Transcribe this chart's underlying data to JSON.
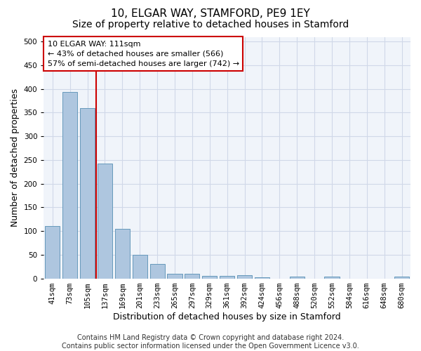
{
  "title_line1": "10, ELGAR WAY, STAMFORD, PE9 1EY",
  "title_line2": "Size of property relative to detached houses in Stamford",
  "xlabel": "Distribution of detached houses by size in Stamford",
  "ylabel": "Number of detached properties",
  "categories": [
    "41sqm",
    "73sqm",
    "105sqm",
    "137sqm",
    "169sqm",
    "201sqm",
    "233sqm",
    "265sqm",
    "297sqm",
    "329sqm",
    "361sqm",
    "392sqm",
    "424sqm",
    "456sqm",
    "488sqm",
    "520sqm",
    "552sqm",
    "584sqm",
    "616sqm",
    "648sqm",
    "680sqm"
  ],
  "values": [
    110,
    393,
    360,
    242,
    105,
    50,
    30,
    10,
    10,
    6,
    6,
    7,
    3,
    0,
    4,
    0,
    4,
    0,
    0,
    0,
    4
  ],
  "bar_color": "#aec6df",
  "bar_edge_color": "#6699bb",
  "vline_color": "#cc0000",
  "vline_index": 2.5,
  "annotation_text_line1": "10 ELGAR WAY: 111sqm",
  "annotation_text_line2": "← 43% of detached houses are smaller (566)",
  "annotation_text_line3": "57% of semi-detached houses are larger (742) →",
  "ylim": [
    0,
    510
  ],
  "yticks": [
    0,
    50,
    100,
    150,
    200,
    250,
    300,
    350,
    400,
    450,
    500
  ],
  "title_fontsize1": 11,
  "title_fontsize2": 10,
  "xlabel_fontsize": 9,
  "ylabel_fontsize": 9,
  "tick_fontsize": 7.5,
  "annotation_fontsize": 8,
  "footer_text": "Contains HM Land Registry data © Crown copyright and database right 2024.\nContains public sector information licensed under the Open Government Licence v3.0.",
  "background_color": "#f0f4fa",
  "grid_color": "#d0d8e8",
  "footer_fontsize": 7
}
